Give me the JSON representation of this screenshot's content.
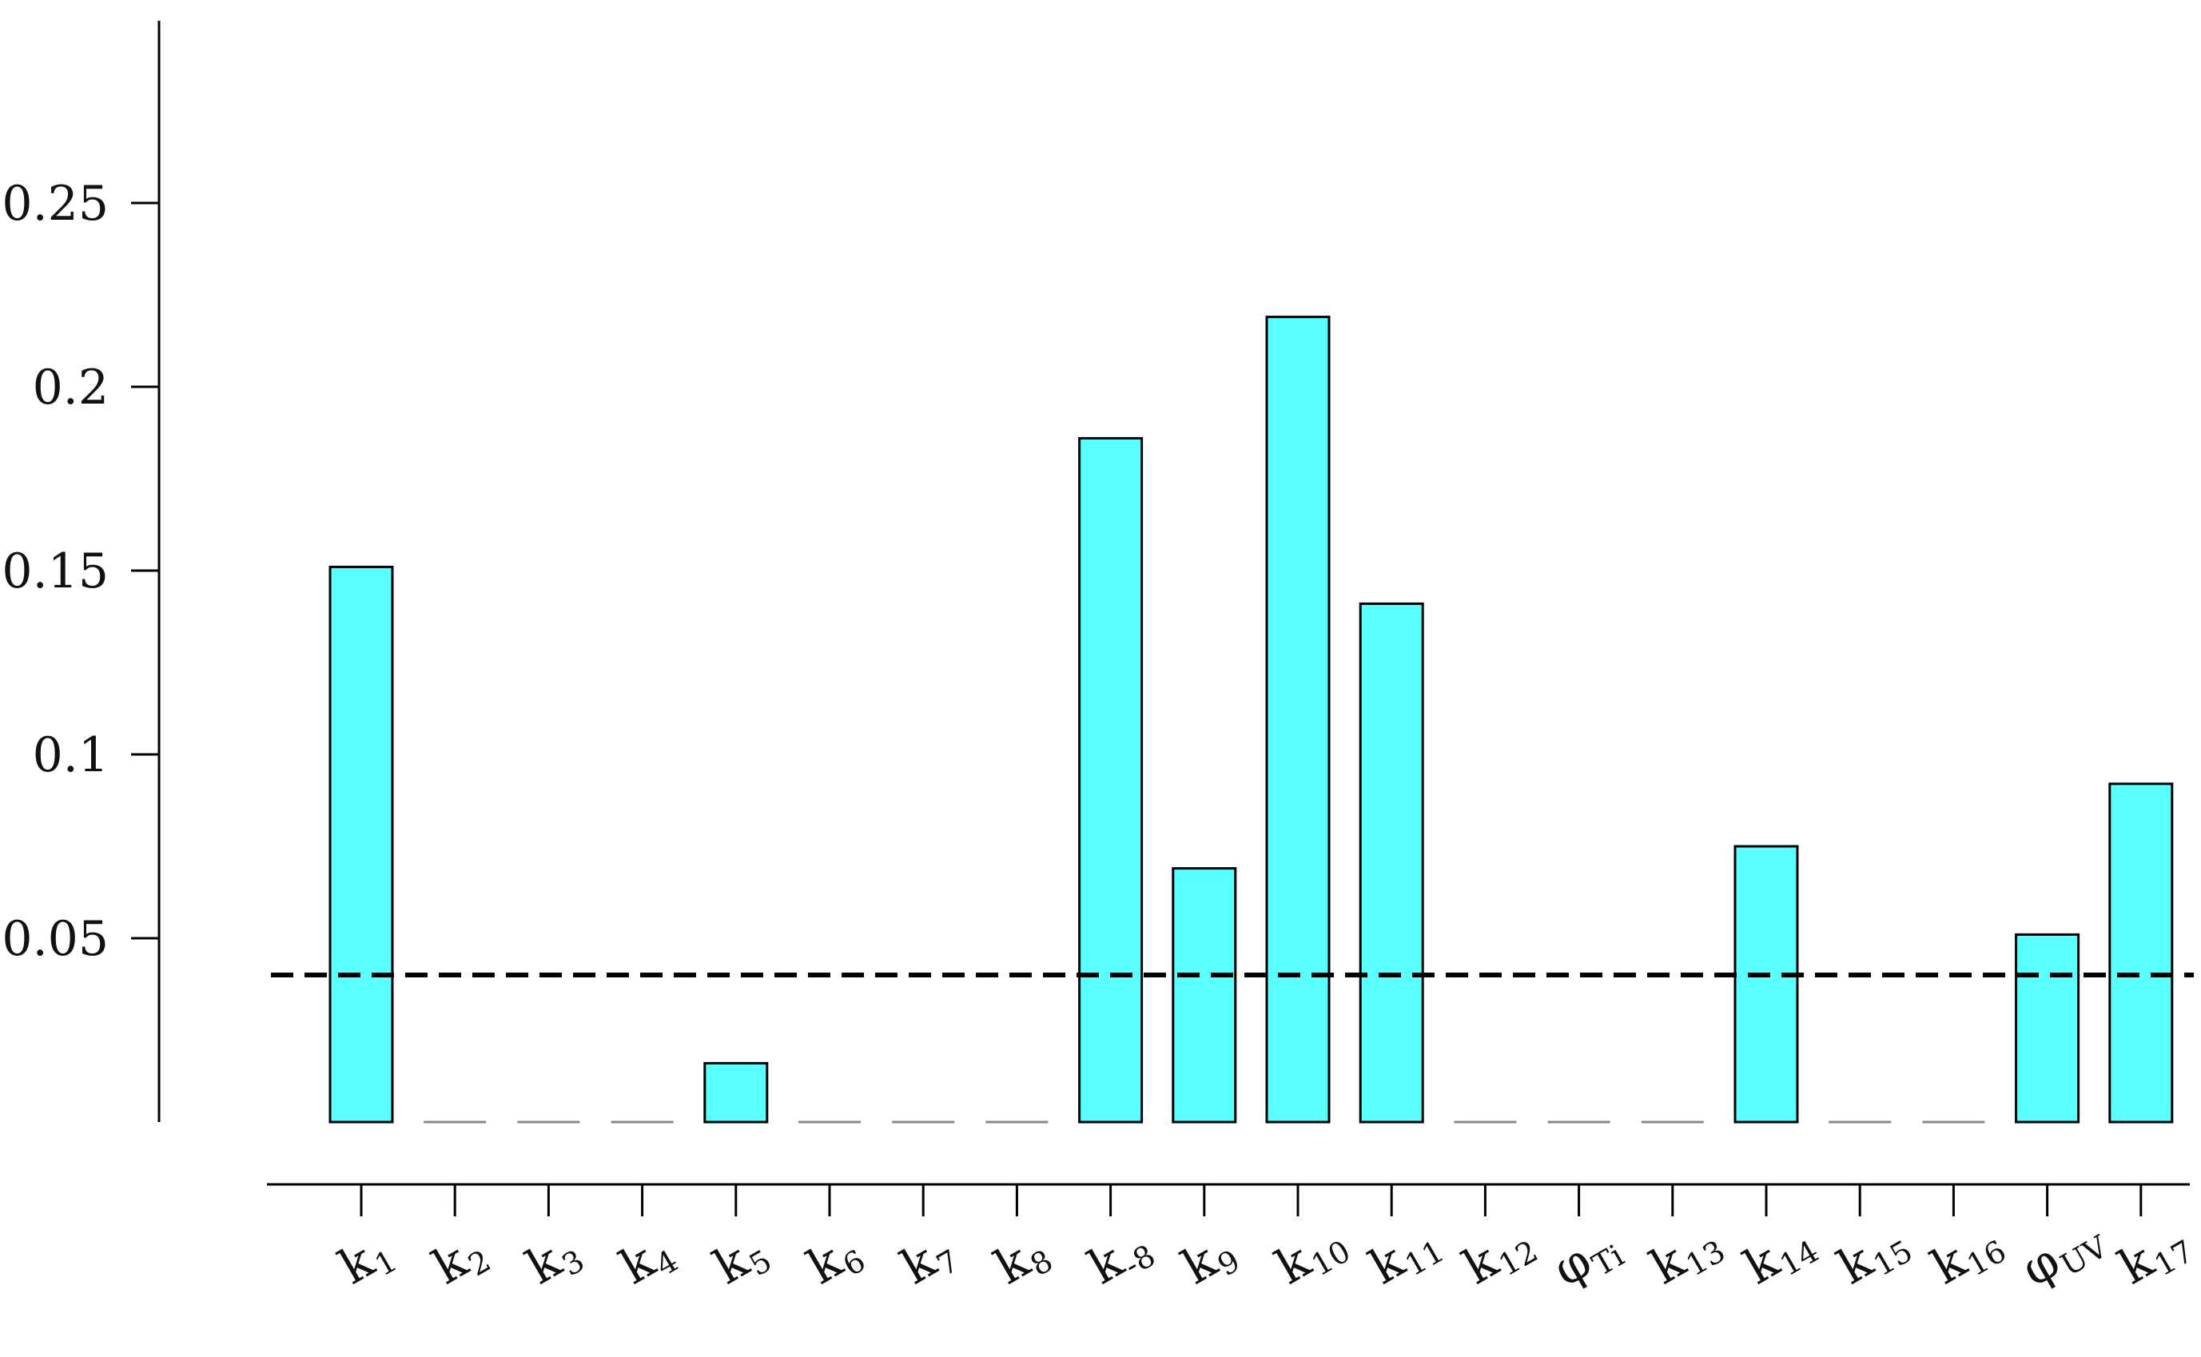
{
  "chart_data": {
    "type": "bar",
    "title": "",
    "xlabel": "",
    "ylabel": "",
    "ylim": [
      0,
      0.3
    ],
    "yticks": [
      "0.05",
      "0.1",
      "0.15",
      "0.2",
      "0.25"
    ],
    "categories": [
      {
        "main": "k",
        "sub": "1"
      },
      {
        "main": "k",
        "sub": "2"
      },
      {
        "main": "k",
        "sub": "3"
      },
      {
        "main": "k",
        "sub": "4"
      },
      {
        "main": "k",
        "sub": "5"
      },
      {
        "main": "k",
        "sub": "6"
      },
      {
        "main": "k",
        "sub": "7"
      },
      {
        "main": "k",
        "sub": "8"
      },
      {
        "main": "k",
        "sub": "-8"
      },
      {
        "main": "k",
        "sub": "9"
      },
      {
        "main": "k",
        "sub": "10"
      },
      {
        "main": "k",
        "sub": "11"
      },
      {
        "main": "k",
        "sub": "12"
      },
      {
        "main": "φ",
        "sub": "Ti"
      },
      {
        "main": "k",
        "sub": "13"
      },
      {
        "main": "k",
        "sub": "14"
      },
      {
        "main": "k",
        "sub": "15"
      },
      {
        "main": "k",
        "sub": "16"
      },
      {
        "main": "φ",
        "sub": "UV"
      },
      {
        "main": "k",
        "sub": "17"
      }
    ],
    "values": [
      0.151,
      0,
      0,
      0,
      0.016,
      0,
      0,
      0,
      0.186,
      0.069,
      0.219,
      0.141,
      0,
      0,
      0,
      0.075,
      0,
      0,
      0.051,
      0.092
    ],
    "threshold": 0.04,
    "bar_color": "#5affff",
    "bar_edge_color": "#000000",
    "zero_marker_color": "#888888",
    "threshold_color": "#000000",
    "grid": false
  }
}
